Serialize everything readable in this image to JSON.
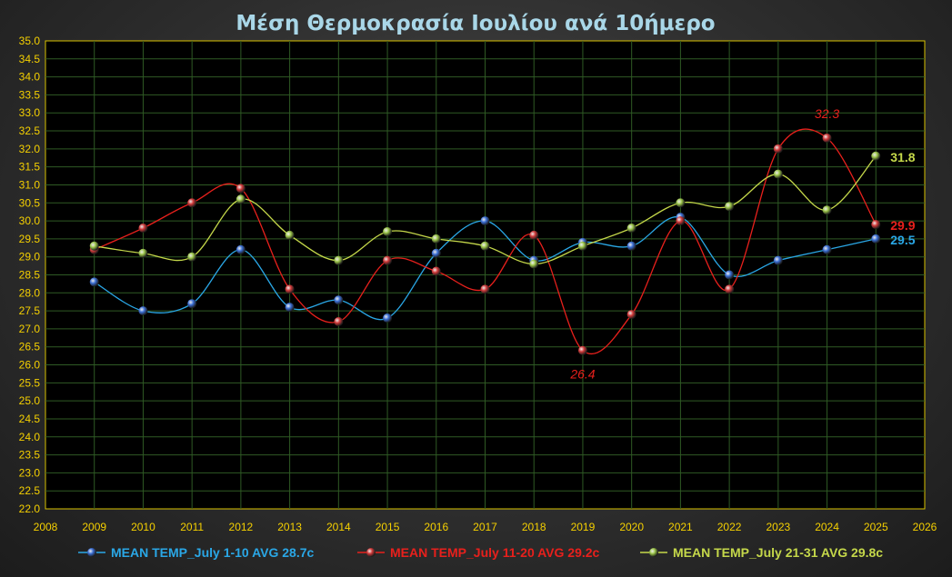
{
  "chart_data": {
    "type": "line",
    "title": "Μέση Θερμοκρασία Ιουλίου ανά 10ήμερο",
    "xlabel": "",
    "ylabel": "",
    "xlim": [
      2008,
      2026
    ],
    "ylim": [
      22.0,
      35.0
    ],
    "ytick_step": 0.5,
    "x_ticks": [
      "2008",
      "2009",
      "2010",
      "2011",
      "2012",
      "2013",
      "2014",
      "2015",
      "2016",
      "2017",
      "2018",
      "2019",
      "2020",
      "2021",
      "2022",
      "2023",
      "2024",
      "2025",
      "2026"
    ],
    "y_ticks": [
      "22.0",
      "22.5",
      "23.0",
      "23.5",
      "24.0",
      "24.5",
      "25.0",
      "25.5",
      "26.0",
      "26.5",
      "27.0",
      "27.5",
      "28.0",
      "28.5",
      "29.0",
      "29.5",
      "30.0",
      "30.5",
      "31.0",
      "31.5",
      "32.0",
      "32.5",
      "33.0",
      "33.5",
      "34.0",
      "34.5",
      "35.0"
    ],
    "grid": true,
    "legend_position": "bottom",
    "x": [
      2009,
      2010,
      2011,
      2012,
      2013,
      2014,
      2015,
      2016,
      2017,
      2018,
      2019,
      2020,
      2021,
      2022,
      2023,
      2024,
      2025
    ],
    "series": [
      {
        "name": "MEAN TEMP_July 1-10 AVG 28.7c",
        "color": "#2aa7e6",
        "marker_color": "#3b6fd6",
        "values": [
          28.3,
          27.5,
          27.7,
          29.2,
          27.6,
          27.8,
          27.3,
          29.1,
          30.0,
          28.9,
          29.4,
          29.3,
          30.1,
          28.5,
          28.9,
          29.2,
          29.5
        ]
      },
      {
        "name": "MEAN TEMP_July 11-20 AVG 29.2c",
        "color": "#e8201c",
        "marker_color": "#d23a3a",
        "values": [
          29.2,
          29.8,
          30.5,
          30.9,
          28.1,
          27.2,
          28.9,
          28.6,
          28.1,
          29.6,
          26.4,
          27.4,
          30.0,
          28.1,
          32.0,
          32.3,
          29.9
        ]
      },
      {
        "name": "MEAN TEMP_July 21-31 AVG 29.8c",
        "color": "#c5d84a",
        "marker_color": "#9cc64a",
        "values": [
          29.3,
          29.1,
          29.0,
          30.6,
          29.6,
          28.9,
          29.7,
          29.5,
          29.3,
          28.8,
          29.3,
          29.8,
          30.5,
          30.4,
          31.3,
          30.3,
          31.8
        ]
      }
    ],
    "annotations": [
      {
        "text": "32.3",
        "series": 1,
        "index": 15,
        "style": "italic",
        "color": "#e8201c",
        "anchor": "above"
      },
      {
        "text": "26.4",
        "series": 1,
        "index": 10,
        "style": "italic",
        "color": "#e8201c",
        "anchor": "below"
      },
      {
        "text": "31.8",
        "series": 2,
        "index": 16,
        "style": "bold",
        "color": "#c5d84a",
        "anchor": "right"
      },
      {
        "text": "29.9",
        "series": 1,
        "index": 16,
        "style": "bold",
        "color": "#e8201c",
        "anchor": "right"
      },
      {
        "text": "29.5",
        "series": 0,
        "index": 16,
        "style": "bold",
        "color": "#2aa7e6",
        "anchor": "right"
      }
    ],
    "colors": {
      "title": "#a9d7e8",
      "axis_tick": "#f5d000",
      "grid": "#2f5a24",
      "plot_border": "#d9c200",
      "plot_background": "#000000"
    }
  }
}
